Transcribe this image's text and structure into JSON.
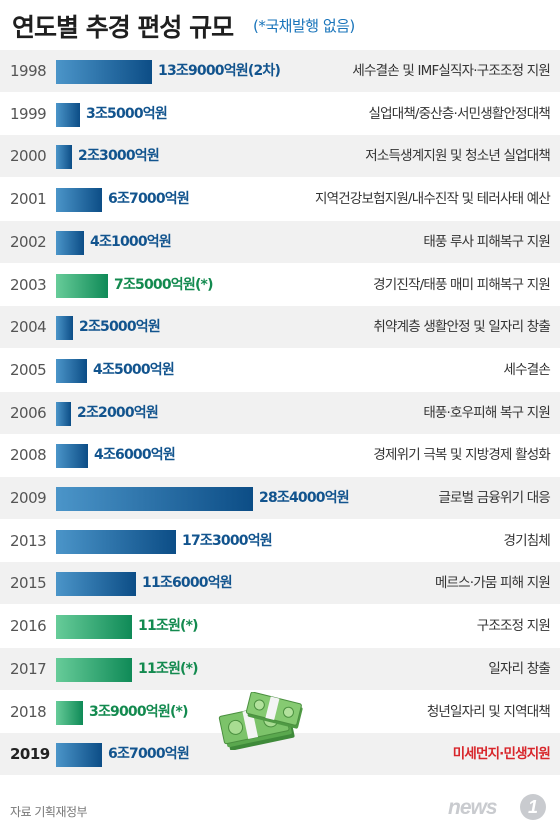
{
  "header": {
    "title": "연도별 추경 편성 규모",
    "subtitle": "(*국채발행 없음)"
  },
  "chart_data": {
    "type": "bar",
    "orientation": "horizontal",
    "value_unit": "억원",
    "rows": [
      {
        "year": "1998",
        "value": 139000,
        "label": "13조9000억원(2차)",
        "color": "blue",
        "desc": "세수결손 및 IMF실직자·구조조정 지원"
      },
      {
        "year": "1999",
        "value": 35000,
        "label": "3조5000억원",
        "color": "blue",
        "desc": "실업대책/중산층·서민생활안정대책"
      },
      {
        "year": "2000",
        "value": 23000,
        "label": "2조3000억원",
        "color": "blue",
        "desc": "저소득생계지원 및 청소년 실업대책"
      },
      {
        "year": "2001",
        "value": 67000,
        "label": "6조7000억원",
        "color": "blue",
        "desc": "지역건강보험지원/내수진작 및 테러사태 예산"
      },
      {
        "year": "2002",
        "value": 41000,
        "label": "4조1000억원",
        "color": "blue",
        "desc": "태풍 루사 피해복구 지원"
      },
      {
        "year": "2003",
        "value": 75000,
        "label": "7조5000억원(*)",
        "color": "green",
        "desc": "경기진작/태풍 매미 피해복구 지원"
      },
      {
        "year": "2004",
        "value": 25000,
        "label": "2조5000억원",
        "color": "blue",
        "desc": "취약계층 생활안정 및 일자리 창출"
      },
      {
        "year": "2005",
        "value": 45000,
        "label": "4조5000억원",
        "color": "blue",
        "desc": "세수결손"
      },
      {
        "year": "2006",
        "value": 22000,
        "label": "2조2000억원",
        "color": "blue",
        "desc": "태풍·호우피해 복구 지원"
      },
      {
        "year": "2008",
        "value": 46000,
        "label": "4조6000억원",
        "color": "blue",
        "desc": "경제위기 극복 및 지방경제 활성화"
      },
      {
        "year": "2009",
        "value": 284000,
        "label": "28조4000억원",
        "color": "blue",
        "desc": "글로벌 금융위기 대응"
      },
      {
        "year": "2013",
        "value": 173000,
        "label": "17조3000억원",
        "color": "blue",
        "desc": "경기침체"
      },
      {
        "year": "2015",
        "value": 116000,
        "label": "11조6000억원",
        "color": "blue",
        "desc": "메르스·가뭄 피해 지원"
      },
      {
        "year": "2016",
        "value": 110000,
        "label": "11조원(*)",
        "color": "green",
        "desc": "구조조정 지원"
      },
      {
        "year": "2017",
        "value": 110000,
        "label": "11조원(*)",
        "color": "green",
        "desc": "일자리 창출"
      },
      {
        "year": "2018",
        "value": 39000,
        "label": "3조9000억원(*)",
        "color": "green",
        "desc": "청년일자리 및 지역대책"
      },
      {
        "year": "2019",
        "value": 67000,
        "label": "6조7000억원",
        "color": "blue",
        "desc": "미세먼지·민생지원",
        "highlight": true
      }
    ]
  },
  "colors": {
    "bar_blue": "#0c4d86",
    "bar_green": "#0f8a57",
    "label_blue": "#12548e",
    "label_green": "#138a4f",
    "highlight_red": "#d8262b",
    "title_accent": "#1a75bb"
  },
  "illustration": "money-stack-icon",
  "footer": {
    "source": "자료 기획재정부",
    "logo_text": "news",
    "logo_badge": "1"
  }
}
